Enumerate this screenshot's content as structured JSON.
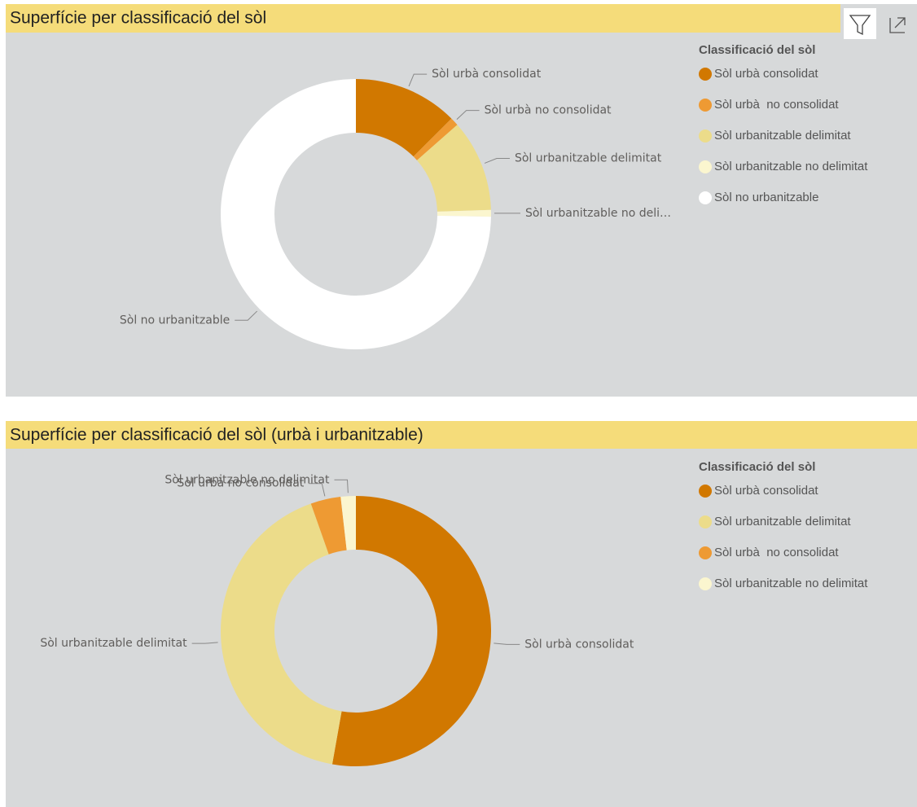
{
  "chart_data": [
    {
      "type": "donut",
      "title": "Superfície per classificació del sòl",
      "legend_title": "Classificació del sòl",
      "legend": "top-right",
      "categories": [
        "Sòl urbà consolidat",
        "Sòl urbà  no consolidat",
        "Sòl urbanitzable delimitat",
        "Sòl urbanitzable no delimitat",
        "Sòl no urbanitzable"
      ],
      "slice_labels": [
        "Sòl urbà consolidat",
        "Sòl urbà no consolidat",
        "Sòl urbanitzable delimitat",
        "Sòl urbanitzable no deli…",
        "Sòl no urbanitzable"
      ],
      "values": [
        12.5,
        1,
        11,
        0.8,
        74.7
      ],
      "colors": [
        "#d17800",
        "#ee9a33",
        "#ecdc8a",
        "#fbf6cf",
        "#ffffff"
      ]
    },
    {
      "type": "donut",
      "title": "Superfície per classificació del sòl (urbà i urbanitzable)",
      "legend_title": "Classificació del sòl",
      "legend": "top-right",
      "categories": [
        "Sòl urbà consolidat",
        "Sòl urbanitzable delimitat",
        "Sòl urbà  no consolidat",
        "Sòl urbanitzable no delimitat"
      ],
      "slice_labels": [
        "Sòl urbà consolidat",
        "Sòl urbanitzable delimitat",
        "Sòl urbà no consolidat",
        "Sòl urbanitzable no delimitat"
      ],
      "values": [
        52.8,
        41.8,
        3.6,
        1.8
      ],
      "colors": [
        "#d17800",
        "#ecdc8a",
        "#ee9a33",
        "#fbf6cf"
      ]
    }
  ]
}
